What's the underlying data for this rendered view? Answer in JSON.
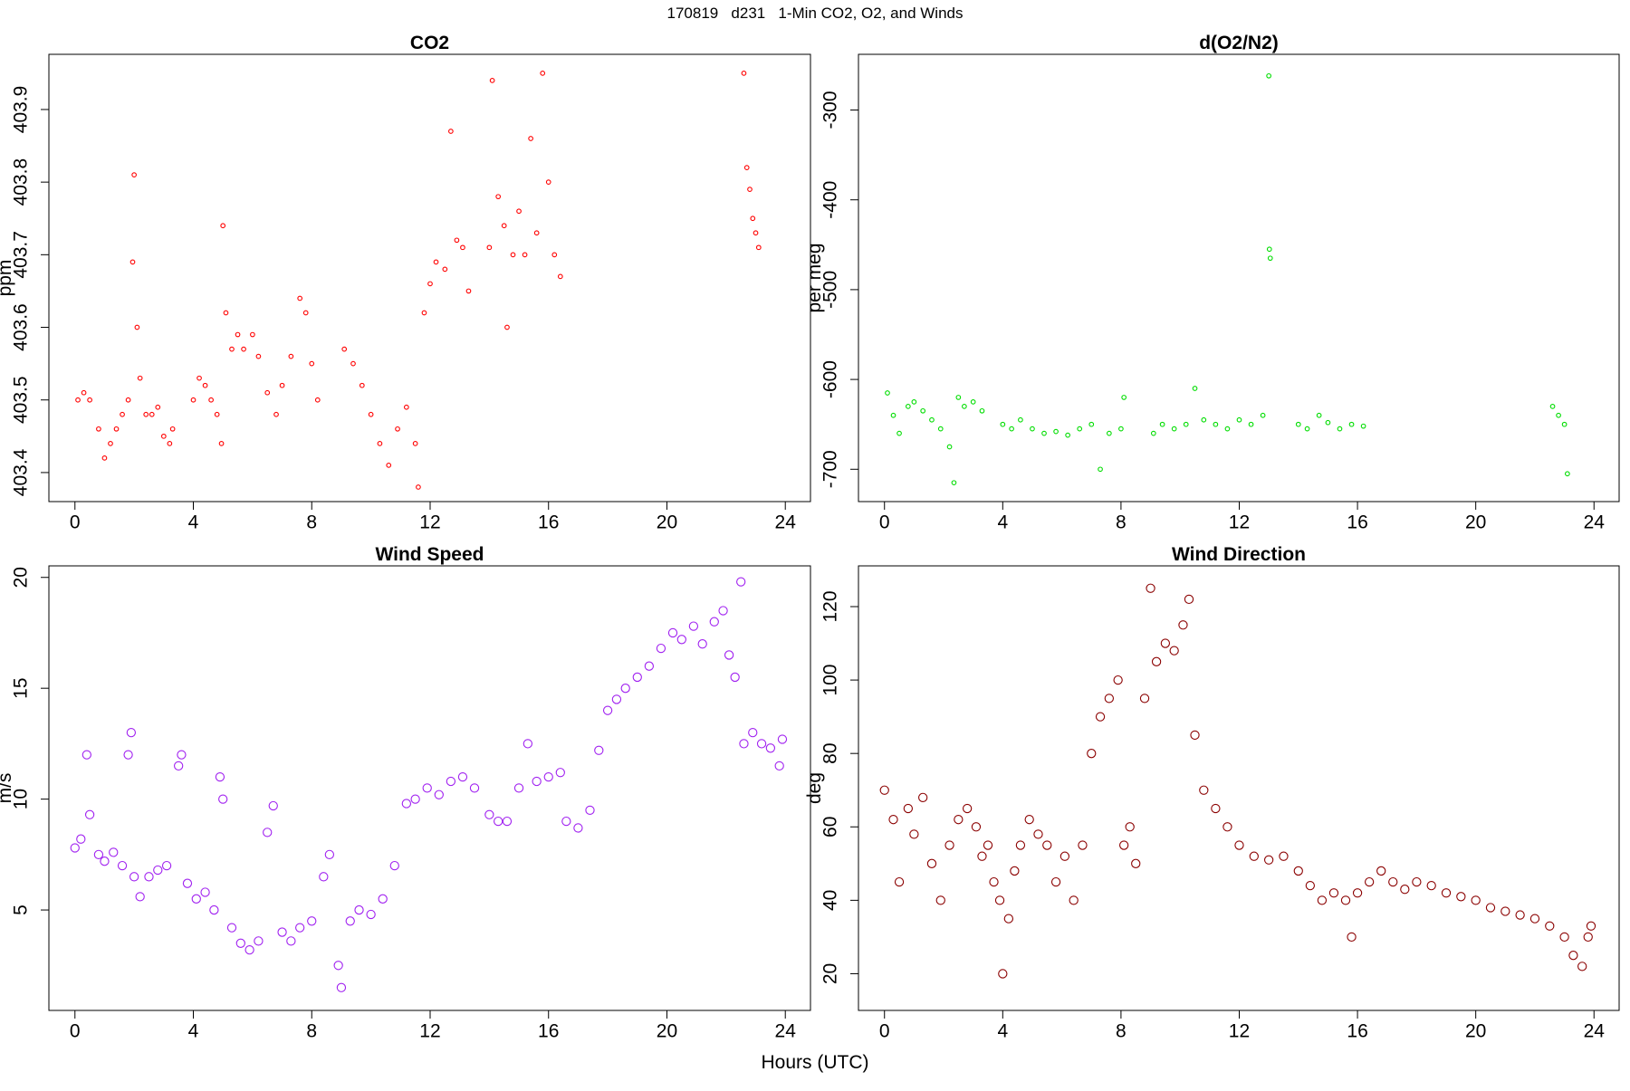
{
  "title": "170819   d231   1-Min CO2, O2, and Winds",
  "xlabel": "Hours (UTC)",
  "chart_data": [
    {
      "type": "scatter",
      "title": "CO2",
      "ylabel": "ppm",
      "color": "#ff0000",
      "xlim": [
        -0.88,
        24.85
      ],
      "xticks": [
        0,
        4,
        8,
        12,
        16,
        20,
        24
      ],
      "ylim": [
        403.36,
        403.976
      ],
      "yticks": [
        403.4,
        403.5,
        403.6,
        403.7,
        403.8,
        403.9
      ],
      "x": [
        0.1,
        0.3,
        0.5,
        0.8,
        1.0,
        1.2,
        1.4,
        1.6,
        1.8,
        1.95,
        2.0,
        2.1,
        2.2,
        2.4,
        2.6,
        2.8,
        3.0,
        3.2,
        3.3,
        4.0,
        4.2,
        4.4,
        4.6,
        4.8,
        4.95,
        5.0,
        5.1,
        5.3,
        5.5,
        5.7,
        6.0,
        6.2,
        6.5,
        6.8,
        7.0,
        7.3,
        7.6,
        7.8,
        8.0,
        8.2,
        9.1,
        9.4,
        9.7,
        10.0,
        10.3,
        10.6,
        10.9,
        11.2,
        11.5,
        11.6,
        11.8,
        12.0,
        12.2,
        12.5,
        12.7,
        12.9,
        13.1,
        13.3,
        14.0,
        14.1,
        14.3,
        14.5,
        14.6,
        14.8,
        15.0,
        15.2,
        15.4,
        15.6,
        15.8,
        16.0,
        16.2,
        16.4,
        22.6,
        22.7,
        22.8,
        22.9,
        23.0,
        23.1
      ],
      "values": [
        403.5,
        403.51,
        403.5,
        403.46,
        403.42,
        403.44,
        403.46,
        403.48,
        403.5,
        403.69,
        403.81,
        403.6,
        403.53,
        403.48,
        403.48,
        403.49,
        403.45,
        403.44,
        403.46,
        403.5,
        403.53,
        403.52,
        403.5,
        403.48,
        403.44,
        403.74,
        403.62,
        403.57,
        403.59,
        403.57,
        403.59,
        403.56,
        403.51,
        403.48,
        403.52,
        403.56,
        403.64,
        403.62,
        403.55,
        403.5,
        403.57,
        403.55,
        403.52,
        403.48,
        403.44,
        403.41,
        403.46,
        403.49,
        403.44,
        403.38,
        403.62,
        403.66,
        403.69,
        403.68,
        403.87,
        403.72,
        403.71,
        403.65,
        403.71,
        403.94,
        403.78,
        403.74,
        403.6,
        403.7,
        403.76,
        403.7,
        403.86,
        403.73,
        403.95,
        403.8,
        403.7,
        403.67,
        403.95,
        403.82,
        403.79,
        403.75,
        403.73,
        403.71
      ]
    },
    {
      "type": "scatter",
      "title": "d(O2/N2)",
      "ylabel": "per meg",
      "color": "#00dd00",
      "xlim": [
        -0.88,
        24.85
      ],
      "xticks": [
        0,
        4,
        8,
        12,
        16,
        20,
        24
      ],
      "ylim": [
        -736,
        -238
      ],
      "yticks": [
        -300,
        -400,
        -500,
        -600,
        -700
      ],
      "x": [
        0.1,
        0.3,
        0.5,
        0.8,
        1.0,
        1.3,
        1.6,
        1.9,
        2.2,
        2.35,
        2.5,
        2.7,
        3.0,
        3.3,
        4.0,
        4.3,
        4.6,
        5.0,
        5.4,
        5.8,
        6.2,
        6.6,
        7.0,
        7.3,
        7.6,
        8.0,
        8.1,
        9.1,
        9.4,
        9.8,
        10.2,
        10.5,
        10.8,
        11.2,
        11.6,
        12.0,
        12.4,
        12.8,
        13.0,
        13.02,
        13.05,
        14.0,
        14.3,
        14.7,
        15.0,
        15.4,
        15.8,
        16.2,
        22.6,
        22.8,
        23.0,
        23.1
      ],
      "values": [
        -615,
        -640,
        -660,
        -630,
        -625,
        -635,
        -645,
        -655,
        -675,
        -715,
        -620,
        -630,
        -625,
        -635,
        -650,
        -655,
        -645,
        -655,
        -660,
        -658,
        -662,
        -655,
        -650,
        -700,
        -660,
        -655,
        -620,
        -660,
        -650,
        -655,
        -650,
        -610,
        -645,
        -650,
        -655,
        -645,
        -650,
        -640,
        -262,
        -455,
        -465,
        -650,
        -655,
        -640,
        -648,
        -655,
        -650,
        -652,
        -630,
        -640,
        -650,
        -705
      ]
    },
    {
      "type": "scatter",
      "title": "Wind Speed",
      "ylabel": "m/s",
      "color": "#a020f0",
      "xlim": [
        -0.88,
        24.85
      ],
      "xticks": [
        0,
        4,
        8,
        12,
        16,
        20,
        24
      ],
      "ylim": [
        0.47,
        20.52
      ],
      "yticks": [
        5,
        10,
        15,
        20
      ],
      "x": [
        0.0,
        0.2,
        0.4,
        0.5,
        0.8,
        1.0,
        1.3,
        1.6,
        1.8,
        1.9,
        2.0,
        2.2,
        2.5,
        2.8,
        3.1,
        3.5,
        3.6,
        3.8,
        4.1,
        4.4,
        4.7,
        4.9,
        5.0,
        5.3,
        5.6,
        5.9,
        6.2,
        6.5,
        6.7,
        7.0,
        7.3,
        7.6,
        8.0,
        8.4,
        8.6,
        8.9,
        9.0,
        9.3,
        9.6,
        10.0,
        10.4,
        10.8,
        11.2,
        11.5,
        11.9,
        12.3,
        12.7,
        13.1,
        13.5,
        14.0,
        14.3,
        14.6,
        15.0,
        15.3,
        15.6,
        16.0,
        16.4,
        16.6,
        17.0,
        17.4,
        17.7,
        18.0,
        18.3,
        18.6,
        19.0,
        19.4,
        19.8,
        20.2,
        20.5,
        20.9,
        21.2,
        21.6,
        21.9,
        22.1,
        22.3,
        22.5,
        22.6,
        22.9,
        23.2,
        23.5,
        23.8,
        23.9
      ],
      "values": [
        7.8,
        8.2,
        12.0,
        9.3,
        7.5,
        7.2,
        7.6,
        7.0,
        12.0,
        13.0,
        6.5,
        5.6,
        6.5,
        6.8,
        7.0,
        11.5,
        12.0,
        6.2,
        5.5,
        5.8,
        5.0,
        11.0,
        10.0,
        4.2,
        3.5,
        3.2,
        3.6,
        8.5,
        9.7,
        4.0,
        3.6,
        4.2,
        4.5,
        6.5,
        7.5,
        2.5,
        1.5,
        4.5,
        5.0,
        4.8,
        5.5,
        7.0,
        9.8,
        10.0,
        10.5,
        10.2,
        10.8,
        11.0,
        10.5,
        9.3,
        9.0,
        9.0,
        10.5,
        12.5,
        10.8,
        11.0,
        11.2,
        9.0,
        8.7,
        9.5,
        12.2,
        14.0,
        14.5,
        15.0,
        15.5,
        16.0,
        16.8,
        17.5,
        17.2,
        17.8,
        17.0,
        18.0,
        18.5,
        16.5,
        15.5,
        19.8,
        12.5,
        13.0,
        12.5,
        12.3,
        11.5,
        12.7
      ]
    },
    {
      "type": "scatter",
      "title": "Wind Direction",
      "ylabel": "deg",
      "color": "#8b0000",
      "xlim": [
        -0.88,
        24.85
      ],
      "xticks": [
        0,
        4,
        8,
        12,
        16,
        20,
        24
      ],
      "ylim": [
        10,
        131.1
      ],
      "yticks": [
        20,
        40,
        60,
        80,
        100,
        120
      ],
      "x": [
        0.0,
        0.3,
        0.5,
        0.8,
        1.0,
        1.3,
        1.6,
        1.9,
        2.2,
        2.5,
        2.8,
        3.1,
        3.3,
        3.5,
        3.7,
        3.9,
        4.0,
        4.2,
        4.4,
        4.6,
        4.9,
        5.2,
        5.5,
        5.8,
        6.1,
        6.4,
        6.7,
        7.0,
        7.3,
        7.6,
        7.9,
        8.1,
        8.3,
        8.5,
        8.8,
        9.0,
        9.2,
        9.5,
        9.8,
        10.1,
        10.3,
        10.5,
        10.8,
        11.2,
        11.6,
        12.0,
        12.5,
        13.0,
        13.5,
        14.0,
        14.4,
        14.8,
        15.2,
        15.6,
        15.8,
        16.0,
        16.4,
        16.8,
        17.2,
        17.6,
        18.0,
        18.5,
        19.0,
        19.5,
        20.0,
        20.5,
        21.0,
        21.5,
        22.0,
        22.5,
        23.0,
        23.3,
        23.6,
        23.8,
        23.9
      ],
      "values": [
        70,
        62,
        45,
        65,
        58,
        68,
        50,
        40,
        55,
        62,
        65,
        60,
        52,
        55,
        45,
        40,
        20,
        35,
        48,
        55,
        62,
        58,
        55,
        45,
        52,
        40,
        55,
        80,
        90,
        95,
        100,
        55,
        60,
        50,
        95,
        125,
        105,
        110,
        108,
        115,
        122,
        85,
        70,
        65,
        60,
        55,
        52,
        51,
        52,
        48,
        44,
        40,
        42,
        40,
        30,
        42,
        45,
        48,
        45,
        43,
        45,
        44,
        42,
        41,
        40,
        38,
        37,
        36,
        35,
        33,
        30,
        25,
        22,
        30,
        33
      ]
    }
  ]
}
